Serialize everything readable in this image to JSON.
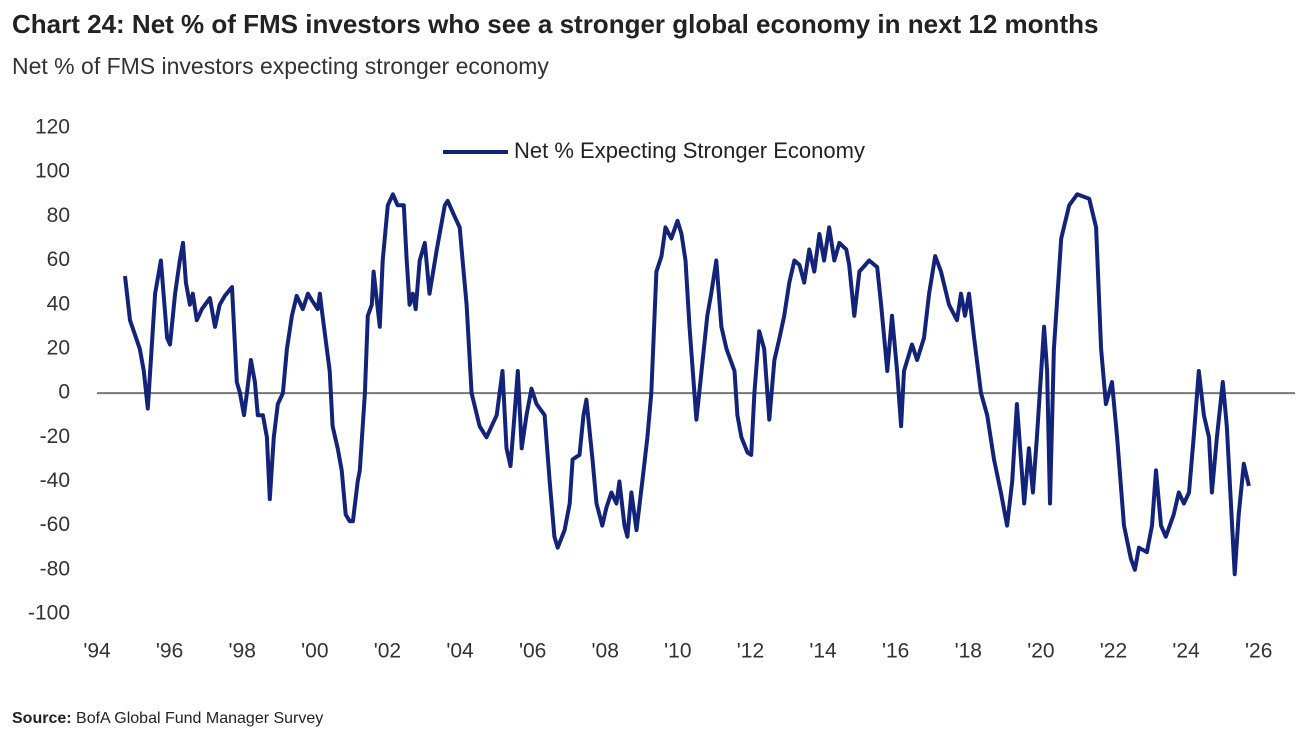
{
  "chart_data": {
    "type": "line",
    "title": "Chart 24: Net % of FMS investors who see a stronger global economy in next 12 months",
    "subtitle": "Net % of FMS investors expecting stronger economy",
    "source_label": "Source:",
    "source_text": "BofA Global Fund Manager Survey",
    "x": [
      1994.77,
      1994.91,
      1995.18,
      1995.29,
      1995.4,
      1995.6,
      1995.76,
      1995.93,
      1996.01,
      1996.15,
      1996.28,
      1996.37,
      1996.45,
      1996.56,
      1996.64,
      1996.75,
      1996.89,
      1997.11,
      1997.25,
      1997.38,
      1997.52,
      1997.72,
      1997.85,
      1997.94,
      1998.05,
      1998.13,
      1998.24,
      1998.35,
      1998.43,
      1998.57,
      1998.68,
      1998.76,
      1998.87,
      1998.98,
      1999.12,
      1999.23,
      1999.37,
      1999.5,
      1999.67,
      1999.81,
      1999.92,
      2000.08,
      2000.14,
      2000.19,
      2000.41,
      2000.49,
      2000.63,
      2000.74,
      2000.85,
      2000.96,
      2001.05,
      2001.18,
      2001.24,
      2001.38,
      2001.46,
      2001.57,
      2001.62,
      2001.79,
      2001.87,
      2002.01,
      2002.15,
      2002.28,
      2002.45,
      2002.53,
      2002.61,
      2002.7,
      2002.78,
      2002.89,
      2003.03,
      2003.16,
      2003.36,
      2003.58,
      2003.66,
      2003.85,
      2003.99,
      2004.07,
      2004.18,
      2004.32,
      2004.54,
      2004.73,
      2004.87,
      2005.01,
      2005.17,
      2005.28,
      2005.39,
      2005.5,
      2005.59,
      2005.7,
      2005.83,
      2005.97,
      2006.11,
      2006.33,
      2006.47,
      2006.6,
      2006.69,
      2006.88,
      2007.02,
      2007.1,
      2007.29,
      2007.4,
      2007.48,
      2007.65,
      2007.76,
      2007.92,
      2008.03,
      2008.17,
      2008.31,
      2008.39,
      2008.53,
      2008.61,
      2008.72,
      2008.86,
      2009.02,
      2009.16,
      2009.27,
      2009.41,
      2009.55,
      2009.66,
      2009.82,
      2009.99,
      2010.1,
      2010.21,
      2010.32,
      2010.51,
      2010.62,
      2010.81,
      2010.92,
      2011.06,
      2011.2,
      2011.34,
      2011.56,
      2011.64,
      2011.75,
      2011.92,
      2012.02,
      2012.11,
      2012.24,
      2012.38,
      2012.52,
      2012.66,
      2012.8,
      2012.93,
      2013.07,
      2013.21,
      2013.35,
      2013.48,
      2013.62,
      2013.76,
      2013.9,
      2014.03,
      2014.17,
      2014.31,
      2014.45,
      2014.64,
      2014.72,
      2014.86,
      2015.0,
      2015.27,
      2015.49,
      2015.6,
      2015.77,
      2015.9,
      2016.04,
      2016.15,
      2016.23,
      2016.45,
      2016.59,
      2016.78,
      2016.92,
      2017.09,
      2017.25,
      2017.47,
      2017.69,
      2017.8,
      2017.91,
      2018.02,
      2018.16,
      2018.35,
      2018.52,
      2018.71,
      2018.9,
      2019.07,
      2019.21,
      2019.34,
      2019.54,
      2019.67,
      2019.78,
      2019.89,
      2020.09,
      2020.17,
      2020.25,
      2020.36,
      2020.56,
      2020.78,
      2021.0,
      2021.33,
      2021.52,
      2021.66,
      2021.79,
      2021.96,
      2022.1,
      2022.29,
      2022.48,
      2022.59,
      2022.7,
      2022.92,
      2023.06,
      2023.17,
      2023.31,
      2023.44,
      2023.66,
      2023.8,
      2023.94,
      2024.08,
      2024.21,
      2024.35,
      2024.49,
      2024.63,
      2024.71,
      2024.85,
      2025.01,
      2025.12,
      2025.34,
      2025.45,
      2025.59,
      2025.73
    ],
    "series": [
      {
        "name": "Net % Expecting Stronger Economy",
        "color": "#13237a",
        "values": [
          53,
          33,
          20,
          10,
          -7,
          45,
          60,
          25,
          22,
          45,
          60,
          68,
          50,
          40,
          45,
          33,
          38,
          43,
          30,
          40,
          44,
          48,
          5,
          0,
          -10,
          0,
          15,
          5,
          -10,
          -10,
          -20,
          -48,
          -20,
          -5,
          0,
          20,
          35,
          44,
          38,
          45,
          42,
          38,
          45,
          38,
          10,
          -15,
          -25,
          -35,
          -55,
          -58,
          -58,
          -40,
          -35,
          0,
          35,
          40,
          55,
          30,
          60,
          85,
          90,
          85,
          85,
          60,
          40,
          45,
          38,
          60,
          68,
          45,
          65,
          85,
          87,
          80,
          75,
          60,
          40,
          0,
          -15,
          -20,
          -15,
          -10,
          10,
          -25,
          -33,
          -10,
          10,
          -25,
          -10,
          2,
          -5,
          -10,
          -40,
          -65,
          -70,
          -62,
          -50,
          -30,
          -28,
          -10,
          -3,
          -30,
          -50,
          -60,
          -52,
          -45,
          -50,
          -40,
          -60,
          -65,
          -45,
          -62,
          -40,
          -20,
          0,
          55,
          62,
          75,
          70,
          78,
          72,
          60,
          30,
          -12,
          5,
          35,
          45,
          60,
          30,
          20,
          10,
          -10,
          -20,
          -27,
          -28,
          0,
          28,
          20,
          -12,
          15,
          25,
          35,
          50,
          60,
          58,
          50,
          65,
          55,
          72,
          60,
          75,
          60,
          68,
          65,
          58,
          35,
          55,
          60,
          57,
          40,
          10,
          35,
          10,
          -15,
          10,
          22,
          15,
          25,
          45,
          62,
          55,
          40,
          33,
          45,
          35,
          45,
          25,
          0,
          -10,
          -30,
          -45,
          -60,
          -40,
          -5,
          -50,
          -25,
          -45,
          -20,
          30,
          10,
          -50,
          20,
          70,
          85,
          90,
          88,
          75,
          20,
          -5,
          5,
          -20,
          -60,
          -75,
          -80,
          -70,
          -72,
          -60,
          -35,
          -60,
          -65,
          -55,
          -45,
          -50,
          -45,
          -20,
          10,
          -10,
          -20,
          -45,
          -20,
          5,
          -15,
          -82,
          -55,
          -32,
          -42
        ]
      }
    ],
    "xlim": [
      1994,
      2027
    ],
    "xticks": [
      {
        "value": 1994,
        "label": "'94"
      },
      {
        "value": 1996,
        "label": "'96"
      },
      {
        "value": 1998,
        "label": "'98"
      },
      {
        "value": 2000,
        "label": "'00"
      },
      {
        "value": 2002,
        "label": "'02"
      },
      {
        "value": 2004,
        "label": "'04"
      },
      {
        "value": 2006,
        "label": "'06"
      },
      {
        "value": 2008,
        "label": "'08"
      },
      {
        "value": 2010,
        "label": "'10"
      },
      {
        "value": 2012,
        "label": "'12"
      },
      {
        "value": 2014,
        "label": "'14"
      },
      {
        "value": 2016,
        "label": "'16"
      },
      {
        "value": 2018,
        "label": "'18"
      },
      {
        "value": 2020,
        "label": "'20"
      },
      {
        "value": 2022,
        "label": "'22"
      },
      {
        "value": 2024,
        "label": "'24"
      },
      {
        "value": 2026,
        "label": "'26"
      }
    ],
    "ylim": [
      -100,
      120
    ],
    "yticks": [
      -100,
      -80,
      -60,
      -40,
      -20,
      0,
      20,
      40,
      60,
      80,
      100,
      120
    ],
    "grid": false,
    "legend": "top"
  }
}
